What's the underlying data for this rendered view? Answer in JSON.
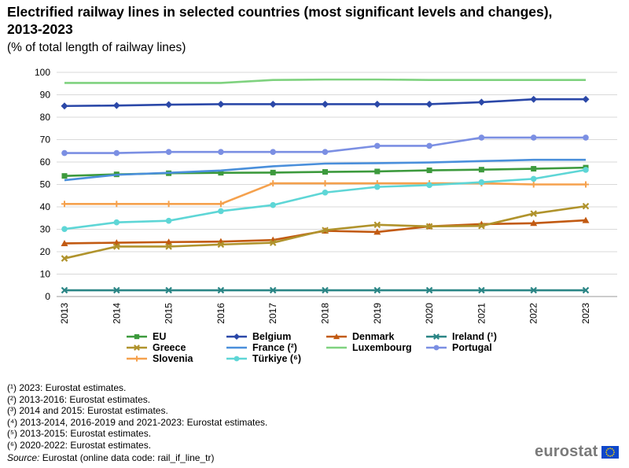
{
  "title": "Electrified railway lines in selected countries (most significant levels and changes), 2013-2023",
  "subtitle": "(% of total length of railway lines)",
  "chart_data": {
    "type": "line",
    "categories": [
      "2013",
      "2014",
      "2015",
      "2016",
      "2017",
      "2018",
      "2019",
      "2020",
      "2021",
      "2022",
      "2023"
    ],
    "ylim": [
      0,
      100
    ],
    "yticks": [
      0,
      10,
      20,
      30,
      40,
      50,
      60,
      70,
      80,
      90,
      100
    ],
    "grid": true,
    "legend_position": "bottom",
    "series": [
      {
        "name": "EU",
        "color": "#3d9a3d",
        "marker": "square",
        "values": [
          53.8,
          54.5,
          55.0,
          55.2,
          55.3,
          55.6,
          55.8,
          56.3,
          56.6,
          57.0,
          57.5
        ]
      },
      {
        "name": "Belgium",
        "color": "#2b48a8",
        "marker": "diamond",
        "values": [
          85.0,
          85.2,
          85.6,
          85.8,
          85.8,
          85.8,
          85.8,
          85.8,
          86.7,
          88.0,
          88.0
        ]
      },
      {
        "name": "Denmark",
        "color": "#c25a12",
        "marker": "triangle",
        "values": [
          23.7,
          24.0,
          24.3,
          24.5,
          25.2,
          29.3,
          28.8,
          31.3,
          32.3,
          32.7,
          34.0
        ]
      },
      {
        "name": "Ireland (¹)",
        "color": "#2a8585",
        "marker": "x",
        "values": [
          2.8,
          2.8,
          2.8,
          2.8,
          2.8,
          2.8,
          2.8,
          2.8,
          2.8,
          2.8,
          2.8
        ]
      },
      {
        "name": "Greece",
        "color": "#b0932c",
        "marker": "x",
        "values": [
          17.0,
          22.3,
          22.3,
          23.2,
          24.0,
          29.6,
          32.0,
          31.3,
          31.5,
          37.0,
          40.3
        ]
      },
      {
        "name": "France (²)",
        "color": "#4a8fdb",
        "marker": "none",
        "values": [
          51.9,
          54.3,
          55.2,
          56.2,
          58.1,
          59.3,
          59.5,
          59.8,
          60.4,
          61.0,
          61.0
        ]
      },
      {
        "name": "Luxembourg",
        "color": "#7fd27f",
        "marker": "none",
        "values": [
          95.3,
          95.3,
          95.3,
          95.3,
          96.6,
          96.8,
          96.8,
          96.6,
          96.6,
          96.6,
          96.6
        ]
      },
      {
        "name": "Portugal",
        "color": "#7b8fe3",
        "marker": "circle",
        "values": [
          64.0,
          64.0,
          64.5,
          64.5,
          64.5,
          64.5,
          67.2,
          67.2,
          70.9,
          70.9,
          70.9
        ]
      },
      {
        "name": "Slovenia",
        "color": "#f5a14d",
        "marker": "plus",
        "values": [
          41.3,
          41.3,
          41.3,
          41.3,
          50.5,
          50.5,
          50.5,
          50.5,
          50.5,
          50.0,
          50.0
        ]
      },
      {
        "name": "Türkiye (⁶)",
        "color": "#5ed6d6",
        "marker": "circle",
        "values": [
          30.1,
          33.1,
          33.8,
          38.1,
          40.8,
          46.4,
          48.9,
          49.7,
          51.0,
          52.5,
          56.5
        ]
      }
    ]
  },
  "notes": [
    "(¹) 2023: Eurostat estimates.",
    "(²) 2013-2016: Eurostat estimates.",
    "(³) 2014 and 2015: Eurostat estimates.",
    "(⁴) 2013-2014, 2016-2019 and 2021-2023: Eurostat estimates.",
    "(⁵) 2013-2015: Eurostat estimates.",
    "(⁶) 2020-2022: Eurostat estimates."
  ],
  "source": {
    "label": "Source:",
    "text": " Eurostat (online data code: rail_if_line_tr)"
  },
  "logo": {
    "text": "eurostat",
    "flag_color": "#0e47cb",
    "star_color": "#ffd600"
  }
}
